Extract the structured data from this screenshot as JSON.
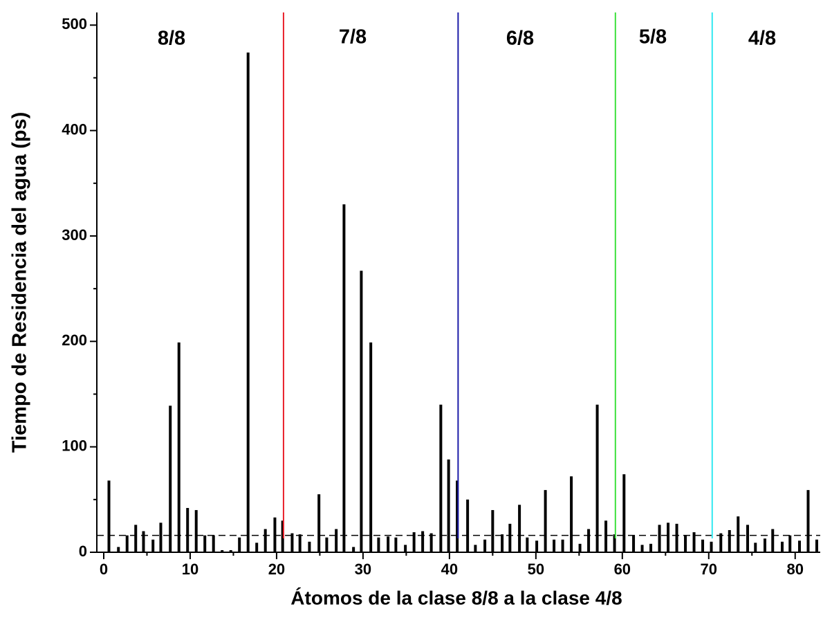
{
  "chart_data": {
    "type": "bar",
    "x_label": "Átomos de la clase 8/8 a la clase 4/8",
    "y_label": "Tiempo de Residencia del agua (ps)",
    "x": [
      0.6,
      1.7,
      2.7,
      3.7,
      4.6,
      5.7,
      6.6,
      7.7,
      8.7,
      9.7,
      10.7,
      11.7,
      12.7,
      13.7,
      14.7,
      15.7,
      16.7,
      17.7,
      18.7,
      19.8,
      20.7,
      21.8,
      22.7,
      23.8,
      24.9,
      25.8,
      26.9,
      27.8,
      28.9,
      29.8,
      30.9,
      31.8,
      32.9,
      33.8,
      34.9,
      35.9,
      36.9,
      37.9,
      39.0,
      39.9,
      40.9,
      42.1,
      43.0,
      44.1,
      45.0,
      46.1,
      47.0,
      48.1,
      49.0,
      50.1,
      51.1,
      52.1,
      53.1,
      54.1,
      55.1,
      56.1,
      57.1,
      58.1,
      59.1,
      60.2,
      61.3,
      62.3,
      63.3,
      64.3,
      65.3,
      66.3,
      67.3,
      68.3,
      69.3,
      70.3,
      71.4,
      72.4,
      73.4,
      74.5,
      75.4,
      76.5,
      77.4,
      78.5,
      79.4,
      80.5,
      81.5,
      82.5
    ],
    "values": [
      68,
      5,
      16,
      26,
      20,
      12,
      28,
      139,
      199,
      42,
      40,
      16,
      16,
      2,
      2,
      14,
      474,
      9,
      22,
      33,
      30,
      18,
      17,
      10,
      55,
      14,
      22,
      330,
      5,
      267,
      199,
      14,
      15,
      14,
      7,
      19,
      20,
      18,
      140,
      88,
      68,
      50,
      7,
      12,
      40,
      17,
      27,
      45,
      14,
      11,
      59,
      12,
      12,
      72,
      8,
      22,
      140,
      30,
      17,
      74,
      16,
      7,
      8,
      26,
      28,
      27,
      16,
      19,
      12,
      10,
      18,
      21,
      34,
      26,
      9,
      13,
      22,
      10,
      16,
      11,
      59,
      12
    ],
    "color": "#000000",
    "xlim": [
      -0.8,
      82.9
    ],
    "xticks": [
      0,
      10,
      20,
      30,
      40,
      50,
      60,
      70,
      80
    ],
    "ylim": [
      0,
      512
    ],
    "yticks": [
      0,
      100,
      200,
      300,
      400,
      500
    ],
    "threshold": 16,
    "dividers": [
      {
        "x": 20.8,
        "color": "#e8202a"
      },
      {
        "x": 41.0,
        "color": "#1a1aa8"
      },
      {
        "x": 59.2,
        "color": "#3ce03c"
      },
      {
        "x": 70.4,
        "color": "#30e8f0"
      }
    ],
    "regions": [
      "8/8",
      "7/8",
      "6/8",
      "5/8",
      "4/8"
    ]
  }
}
